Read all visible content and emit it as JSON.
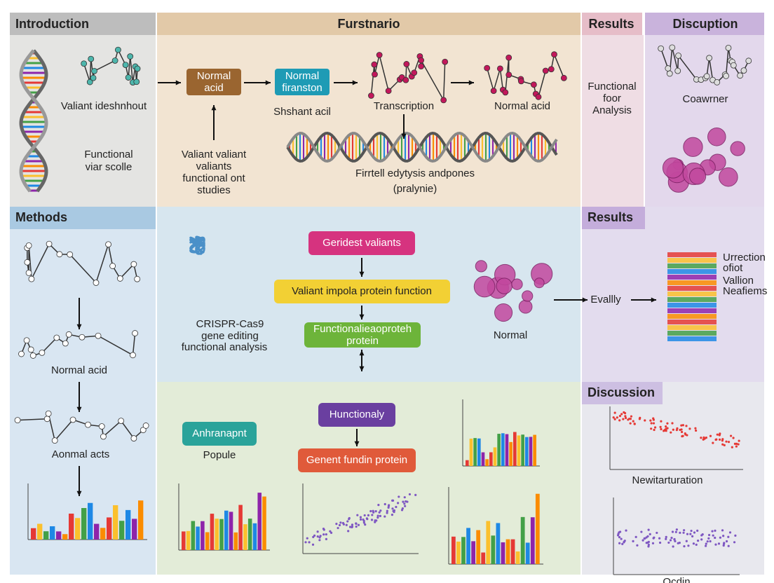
{
  "header": {
    "introduction": "Introduction",
    "overview": "Furstnario",
    "results": "Results",
    "discussion": "Discuption",
    "methods": "Methods",
    "results_2": "Results",
    "discussion_2": "Discussion"
  },
  "introduction": {
    "caption": "Valiant ideshnhout",
    "note": [
      "Functional",
      "viar scolle"
    ]
  },
  "overview": {
    "box_1": [
      "Normal",
      "acid"
    ],
    "box_2": [
      "Normal",
      "firanston"
    ],
    "label_1": "Shshant acil",
    "label_2": "Transcription",
    "label_3": "Normal acid",
    "studies": [
      "Valiant valiant",
      "valiants",
      "functional ont",
      "studies"
    ],
    "helix_caption": [
      "Firrtell edytysis andpones",
      "(pralynie)"
    ]
  },
  "results": {
    "caption": [
      "Functional",
      "foor",
      "Analysis"
    ]
  },
  "discussion": {
    "caption": "Coawrner"
  },
  "methods": {
    "label_1": "Normal acid",
    "label_2": "Aonmal acts"
  },
  "center": {
    "crispr": [
      "CRISPR-Cas9",
      "gene editing",
      "functional analysis"
    ],
    "box_1": "Geridest valiants",
    "box_2": "Valiant impola protein function",
    "box_3": [
      "Functionalieaoproteh",
      "protein"
    ],
    "normal": "Normal",
    "evally": "Evallly"
  },
  "results_2": {
    "legend": [
      "Urrection",
      "ofiot",
      "Vallion",
      "Neafiems"
    ]
  },
  "lower": {
    "box_1": "Anhranapnt",
    "label": "Popule",
    "box_2": "Hunctionaly",
    "box_3": "Genent fundin protein"
  },
  "discussion_2": {
    "x_label_1": "Newitarturation",
    "x_label_2": "Ocdin"
  }
}
